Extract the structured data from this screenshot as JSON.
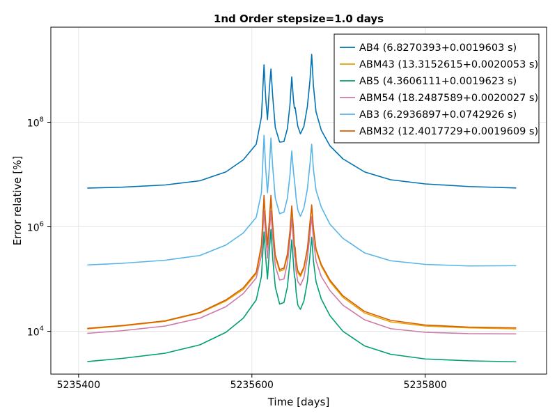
{
  "chart_data": {
    "type": "line",
    "title": "1nd Order stepsize=1.0 days",
    "xlabel": "Time [days]",
    "ylabel": "Error relative [%]",
    "xlim": [
      5235368,
      5235940
    ],
    "ylim_log10": [
      3.18,
      9.82
    ],
    "yscale": "log",
    "grid": true,
    "legend_position": "top-right",
    "x_ticks": [
      5235400,
      5235600,
      5235800
    ],
    "x_tick_labels": [
      "5235400",
      "5235600",
      "5235800"
    ],
    "y_ticks_log10": [
      4,
      6,
      8
    ],
    "y_tick_base": "10",
    "y_tick_exponents": [
      "4",
      "6",
      "8"
    ],
    "series": [
      {
        "name": "AB4 (6.8270393+0.0019603 s)",
        "color": "#0072b2",
        "points": [
          [
            5235410,
            6.74
          ],
          [
            5235450,
            6.758
          ],
          [
            5235500,
            6.8
          ],
          [
            5235540,
            6.88
          ],
          [
            5235570,
            7.05
          ],
          [
            5235590,
            7.28
          ],
          [
            5235605,
            7.58
          ],
          [
            5235611,
            8.1
          ],
          [
            5235614,
            9.1
          ],
          [
            5235616,
            8.45
          ],
          [
            5235618,
            8.05
          ],
          [
            5235620,
            8.6
          ],
          [
            5235622,
            9.02
          ],
          [
            5235624,
            8.5
          ],
          [
            5235627,
            7.9
          ],
          [
            5235632,
            7.62
          ],
          [
            5235637,
            7.63
          ],
          [
            5235641,
            7.88
          ],
          [
            5235644,
            8.35
          ],
          [
            5235646,
            8.87
          ],
          [
            5235648,
            8.42
          ],
          [
            5235649,
            8.27
          ],
          [
            5235650,
            8.28
          ],
          [
            5235651,
            8.15
          ],
          [
            5235653,
            7.92
          ],
          [
            5235656,
            7.78
          ],
          [
            5235660,
            7.92
          ],
          [
            5235664,
            8.3
          ],
          [
            5235667,
            8.8
          ],
          [
            5235669,
            9.3
          ],
          [
            5235671,
            8.7
          ],
          [
            5235674,
            8.2
          ],
          [
            5235680,
            7.85
          ],
          [
            5235690,
            7.55
          ],
          [
            5235705,
            7.3
          ],
          [
            5235730,
            7.05
          ],
          [
            5235760,
            6.9
          ],
          [
            5235800,
            6.82
          ],
          [
            5235850,
            6.77
          ],
          [
            5235905,
            6.742
          ]
        ]
      },
      {
        "name": "ABM43 (13.3152615+0.0020053 s)",
        "color": "#e69f00",
        "points": [
          [
            5235410,
            4.045
          ],
          [
            5235450,
            4.1
          ],
          [
            5235500,
            4.19
          ],
          [
            5235540,
            4.35
          ],
          [
            5235570,
            4.58
          ],
          [
            5235590,
            4.8
          ],
          [
            5235605,
            5.1
          ],
          [
            5235611,
            5.6
          ],
          [
            5235614,
            6.55
          ],
          [
            5235616,
            6.0
          ],
          [
            5235618,
            5.6
          ],
          [
            5235620,
            6.05
          ],
          [
            5235622,
            6.55
          ],
          [
            5235624,
            6.0
          ],
          [
            5235627,
            5.42
          ],
          [
            5235632,
            5.15
          ],
          [
            5235637,
            5.18
          ],
          [
            5235641,
            5.45
          ],
          [
            5235644,
            5.9
          ],
          [
            5235646,
            6.35
          ],
          [
            5235648,
            5.9
          ],
          [
            5235649,
            5.6
          ],
          [
            5235650,
            5.55
          ],
          [
            5235651,
            5.32
          ],
          [
            5235653,
            5.12
          ],
          [
            5235656,
            5.05
          ],
          [
            5235660,
            5.2
          ],
          [
            5235664,
            5.55
          ],
          [
            5235667,
            6.05
          ],
          [
            5235669,
            6.38
          ],
          [
            5235671,
            5.95
          ],
          [
            5235674,
            5.55
          ],
          [
            5235680,
            5.25
          ],
          [
            5235690,
            4.95
          ],
          [
            5235705,
            4.65
          ],
          [
            5235730,
            4.35
          ],
          [
            5235760,
            4.18
          ],
          [
            5235800,
            4.1
          ],
          [
            5235850,
            4.065
          ],
          [
            5235905,
            4.045
          ]
        ]
      },
      {
        "name": "AB5 (4.3606111+0.0019623 s)",
        "color": "#009e73",
        "points": [
          [
            5235410,
            3.42
          ],
          [
            5235450,
            3.48
          ],
          [
            5235500,
            3.58
          ],
          [
            5235540,
            3.74
          ],
          [
            5235570,
            3.98
          ],
          [
            5235590,
            4.25
          ],
          [
            5235605,
            4.6
          ],
          [
            5235611,
            5.05
          ],
          [
            5235614,
            5.9
          ],
          [
            5235616,
            5.4
          ],
          [
            5235618,
            5.0
          ],
          [
            5235620,
            5.5
          ],
          [
            5235622,
            5.95
          ],
          [
            5235624,
            5.4
          ],
          [
            5235627,
            4.85
          ],
          [
            5235632,
            4.52
          ],
          [
            5235637,
            4.55
          ],
          [
            5235641,
            4.85
          ],
          [
            5235644,
            5.35
          ],
          [
            5235646,
            5.75
          ],
          [
            5235648,
            5.3
          ],
          [
            5235649,
            5.05
          ],
          [
            5235650,
            5.0
          ],
          [
            5235651,
            4.75
          ],
          [
            5235653,
            4.5
          ],
          [
            5235656,
            4.42
          ],
          [
            5235660,
            4.58
          ],
          [
            5235664,
            4.95
          ],
          [
            5235667,
            5.45
          ],
          [
            5235669,
            5.8
          ],
          [
            5235671,
            5.35
          ],
          [
            5235674,
            4.95
          ],
          [
            5235680,
            4.62
          ],
          [
            5235690,
            4.3
          ],
          [
            5235705,
            4.0
          ],
          [
            5235730,
            3.72
          ],
          [
            5235760,
            3.56
          ],
          [
            5235800,
            3.47
          ],
          [
            5235850,
            3.435
          ],
          [
            5235905,
            3.415
          ]
        ]
      },
      {
        "name": "ABM54 (18.2487589+0.0020027 s)",
        "color": "#cc79a7",
        "points": [
          [
            5235410,
            3.96
          ],
          [
            5235450,
            4.01
          ],
          [
            5235500,
            4.1
          ],
          [
            5235540,
            4.25
          ],
          [
            5235570,
            4.47
          ],
          [
            5235590,
            4.72
          ],
          [
            5235605,
            5.02
          ],
          [
            5235611,
            5.45
          ],
          [
            5235614,
            6.3
          ],
          [
            5235616,
            5.8
          ],
          [
            5235618,
            5.4
          ],
          [
            5235620,
            5.85
          ],
          [
            5235622,
            6.3
          ],
          [
            5235624,
            5.8
          ],
          [
            5235627,
            5.25
          ],
          [
            5235632,
            4.98
          ],
          [
            5235637,
            5.0
          ],
          [
            5235641,
            5.3
          ],
          [
            5235644,
            5.75
          ],
          [
            5235646,
            6.15
          ],
          [
            5235648,
            5.7
          ],
          [
            5235649,
            5.45
          ],
          [
            5235650,
            5.4
          ],
          [
            5235651,
            5.15
          ],
          [
            5235653,
            4.95
          ],
          [
            5235656,
            4.88
          ],
          [
            5235660,
            5.03
          ],
          [
            5235664,
            5.4
          ],
          [
            5235667,
            5.85
          ],
          [
            5235669,
            6.2
          ],
          [
            5235671,
            5.75
          ],
          [
            5235674,
            5.35
          ],
          [
            5235680,
            5.05
          ],
          [
            5235690,
            4.78
          ],
          [
            5235705,
            4.5
          ],
          [
            5235730,
            4.22
          ],
          [
            5235760,
            4.05
          ],
          [
            5235800,
            3.98
          ],
          [
            5235850,
            3.955
          ],
          [
            5235905,
            3.95
          ]
        ]
      },
      {
        "name": "AB3 (6.2936897+0.0742926 s)",
        "color": "#56b4e9",
        "points": [
          [
            5235410,
            5.27
          ],
          [
            5235450,
            5.3
          ],
          [
            5235500,
            5.36
          ],
          [
            5235540,
            5.45
          ],
          [
            5235570,
            5.65
          ],
          [
            5235590,
            5.88
          ],
          [
            5235605,
            6.18
          ],
          [
            5235611,
            6.65
          ],
          [
            5235614,
            7.75
          ],
          [
            5235616,
            7.1
          ],
          [
            5235618,
            6.65
          ],
          [
            5235620,
            7.1
          ],
          [
            5235622,
            7.7
          ],
          [
            5235624,
            7.15
          ],
          [
            5235627,
            6.55
          ],
          [
            5235632,
            6.25
          ],
          [
            5235637,
            6.28
          ],
          [
            5235641,
            6.55
          ],
          [
            5235644,
            7.0
          ],
          [
            5235646,
            7.45
          ],
          [
            5235648,
            7.05
          ],
          [
            5235649,
            6.9
          ],
          [
            5235650,
            6.75
          ],
          [
            5235651,
            6.55
          ],
          [
            5235653,
            6.32
          ],
          [
            5235656,
            6.2
          ],
          [
            5235660,
            6.36
          ],
          [
            5235664,
            6.72
          ],
          [
            5235667,
            7.2
          ],
          [
            5235669,
            7.58
          ],
          [
            5235671,
            7.1
          ],
          [
            5235674,
            6.7
          ],
          [
            5235680,
            6.38
          ],
          [
            5235690,
            6.05
          ],
          [
            5235705,
            5.78
          ],
          [
            5235730,
            5.5
          ],
          [
            5235760,
            5.35
          ],
          [
            5235800,
            5.28
          ],
          [
            5235850,
            5.25
          ],
          [
            5235905,
            5.255
          ]
        ]
      },
      {
        "name": "ABM32 (12.4017729+0.0019609 s)",
        "color": "#d55e00",
        "points": [
          [
            5235410,
            4.055
          ],
          [
            5235450,
            4.11
          ],
          [
            5235500,
            4.2
          ],
          [
            5235540,
            4.36
          ],
          [
            5235570,
            4.6
          ],
          [
            5235590,
            4.83
          ],
          [
            5235605,
            5.13
          ],
          [
            5235611,
            5.65
          ],
          [
            5235614,
            6.6
          ],
          [
            5235616,
            6.05
          ],
          [
            5235618,
            5.65
          ],
          [
            5235620,
            6.1
          ],
          [
            5235622,
            6.6
          ],
          [
            5235624,
            6.05
          ],
          [
            5235627,
            5.46
          ],
          [
            5235632,
            5.18
          ],
          [
            5235637,
            5.21
          ],
          [
            5235641,
            5.48
          ],
          [
            5235644,
            5.93
          ],
          [
            5235646,
            6.4
          ],
          [
            5235648,
            5.95
          ],
          [
            5235649,
            5.65
          ],
          [
            5235650,
            5.6
          ],
          [
            5235651,
            5.36
          ],
          [
            5235653,
            5.16
          ],
          [
            5235656,
            5.08
          ],
          [
            5235660,
            5.23
          ],
          [
            5235664,
            5.58
          ],
          [
            5235667,
            6.08
          ],
          [
            5235669,
            6.42
          ],
          [
            5235671,
            5.98
          ],
          [
            5235674,
            5.58
          ],
          [
            5235680,
            5.28
          ],
          [
            5235690,
            4.98
          ],
          [
            5235705,
            4.68
          ],
          [
            5235730,
            4.38
          ],
          [
            5235760,
            4.21
          ],
          [
            5235800,
            4.12
          ],
          [
            5235850,
            4.08
          ],
          [
            5235905,
            4.065
          ]
        ]
      }
    ]
  }
}
